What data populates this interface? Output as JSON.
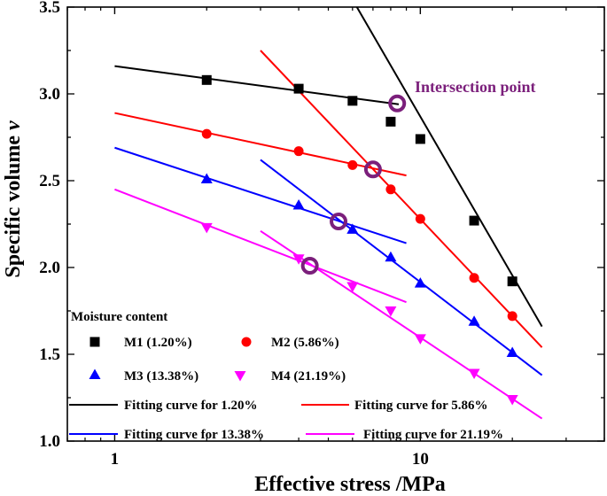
{
  "chart_data": {
    "type": "scatter",
    "xscale": "log",
    "xlabel": "Effective stress /MPa",
    "ylabel": "Specific volume ",
    "ylabel_symbol": "v",
    "xlim": [
      0.7,
      40
    ],
    "ylim": [
      1.0,
      3.5
    ],
    "xticks": [
      1,
      10
    ],
    "xtick_labels": [
      "1",
      "10"
    ],
    "yticks": [
      1.0,
      1.5,
      2.0,
      2.5,
      3.0,
      3.5
    ],
    "ytick_labels": [
      "1.0",
      "1.5",
      "2.0",
      "2.5",
      "3.0",
      "3.5"
    ],
    "legend_title": "Moisture content",
    "annotation": {
      "text": "Intersection point",
      "color": "#7b1f7b"
    },
    "series": [
      {
        "name": "M1 (1.20%)",
        "marker": "square",
        "color": "#000000",
        "x": [
          2,
          4,
          6,
          8,
          10,
          15,
          20
        ],
        "y": [
          3.08,
          3.03,
          2.96,
          2.84,
          2.74,
          2.27,
          1.92
        ]
      },
      {
        "name": "M2 (5.86%)",
        "marker": "circle",
        "color": "#ff0000",
        "x": [
          2,
          4,
          6,
          8,
          10,
          15,
          20
        ],
        "y": [
          2.77,
          2.67,
          2.59,
          2.45,
          2.28,
          1.94,
          1.72
        ]
      },
      {
        "name": "M3 (13.38%)",
        "marker": "triangle-up",
        "color": "#0000ff",
        "x": [
          2,
          4,
          6,
          8,
          10,
          15,
          20
        ],
        "y": [
          2.51,
          2.36,
          2.22,
          2.06,
          1.91,
          1.69,
          1.51
        ]
      },
      {
        "name": "M4 (21.19%)",
        "marker": "triangle-down",
        "color": "#ff00ff",
        "x": [
          2,
          4,
          6,
          8,
          10,
          15,
          20
        ],
        "y": [
          2.23,
          2.05,
          1.89,
          1.75,
          1.59,
          1.39,
          1.24
        ]
      }
    ],
    "fitting_curves": [
      {
        "name": "Fitting curve for 1.20%",
        "color": "#000000",
        "segments": [
          {
            "x": [
              1,
              8.5
            ],
            "y": [
              3.16,
              2.94
            ]
          },
          {
            "x": [
              6.2,
              25
            ],
            "y": [
              3.5,
              1.66
            ]
          }
        ]
      },
      {
        "name": "Fitting curve for 5.86%",
        "color": "#ff0000",
        "segments": [
          {
            "x": [
              1,
              9
            ],
            "y": [
              2.89,
              2.53
            ]
          },
          {
            "x": [
              3,
              25
            ],
            "y": [
              3.25,
              1.54
            ]
          }
        ]
      },
      {
        "name": "Fitting curve for 13.38%",
        "color": "#0000ff",
        "segments": [
          {
            "x": [
              1,
              9
            ],
            "y": [
              2.69,
              2.14
            ]
          },
          {
            "x": [
              3,
              25
            ],
            "y": [
              2.62,
              1.38
            ]
          }
        ]
      },
      {
        "name": "Fitting curve for 21.19%",
        "color": "#ff00ff",
        "segments": [
          {
            "x": [
              1,
              9
            ],
            "y": [
              2.45,
              1.8
            ]
          },
          {
            "x": [
              3,
              25
            ],
            "y": [
              2.21,
              1.13
            ]
          }
        ]
      }
    ],
    "intersection_points": [
      {
        "x": 8.4,
        "y": 2.945
      },
      {
        "x": 7.0,
        "y": 2.565
      },
      {
        "x": 5.4,
        "y": 2.265
      },
      {
        "x": 4.35,
        "y": 2.01
      }
    ]
  }
}
